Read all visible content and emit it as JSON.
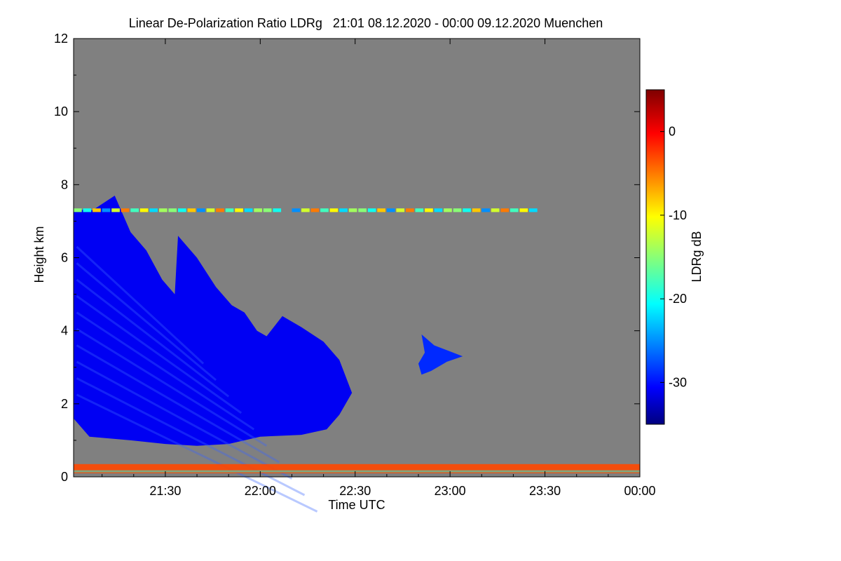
{
  "chart_data": {
    "type": "heatmap",
    "title": "Linear De-Polarization Ratio LDRg   21:01 08.12.2020 - 00:00 09.12.2020 Muenchen",
    "xlabel": "Time UTC",
    "ylabel": "Height km",
    "x_range_minutes_utc": [
      1261,
      1440
    ],
    "x_ticks": [
      {
        "minute": 1290,
        "label": "21:30"
      },
      {
        "minute": 1320,
        "label": "22:00"
      },
      {
        "minute": 1350,
        "label": "22:30"
      },
      {
        "minute": 1380,
        "label": "23:00"
      },
      {
        "minute": 1410,
        "label": "23:30"
      },
      {
        "minute": 1440,
        "label": "00:00"
      }
    ],
    "ylim": [
      0,
      12
    ],
    "y_ticks": [
      0,
      2,
      4,
      6,
      8,
      10,
      12
    ],
    "background_color": "#808080",
    "colorbar": {
      "label": "LDRg dB",
      "range": [
        -35,
        5
      ],
      "ticks": [
        0,
        -10,
        -20,
        -30
      ],
      "colormap": "jet"
    },
    "regions": [
      {
        "name": "main precipitation area",
        "ldr_db": -31,
        "height_km": [
          0.9,
          7.6
        ],
        "time": "21:01-22:30"
      },
      {
        "name": "upper band",
        "ldr_db": -15,
        "height_km": [
          7.25,
          7.35
        ],
        "time": "21:01-23:27"
      },
      {
        "name": "isolated cloud",
        "ldr_db": -29,
        "height_km": [
          2.8,
          3.9
        ],
        "time": "22:48-23:03"
      },
      {
        "name": "ground clutter",
        "ldr_db": -3,
        "height_km": [
          0.1,
          0.35
        ],
        "time": "21:01-00:00"
      }
    ]
  }
}
